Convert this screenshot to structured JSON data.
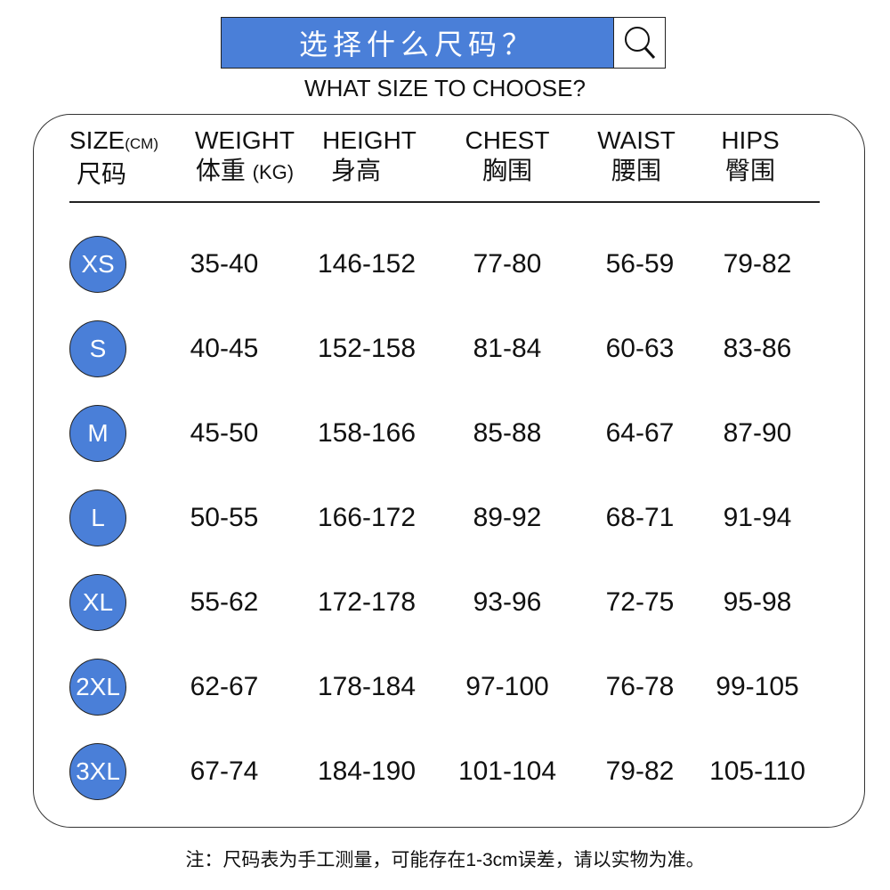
{
  "banner": {
    "title_cn": "选择什么尺码？",
    "subtitle": "WHAT SIZE TO CHOOSE?",
    "icon": "search-icon",
    "color": "#4a7fd8"
  },
  "headers": [
    {
      "en": "SIZE",
      "unit": "(CM)",
      "cn": "尺码"
    },
    {
      "en": "WEIGHT",
      "cn": "体重",
      "unit": "(KG)"
    },
    {
      "en": "HEIGHT",
      "cn": "身高"
    },
    {
      "en": "CHEST",
      "cn": "胸围"
    },
    {
      "en": "WAIST",
      "cn": "腰围"
    },
    {
      "en": "HIPS",
      "cn": "臀围"
    }
  ],
  "rows": [
    {
      "size": "XS",
      "weight": "35-40",
      "height": "146-152",
      "chest": "77-80",
      "waist": "56-59",
      "hips": "79-82"
    },
    {
      "size": "S",
      "weight": "40-45",
      "height": "152-158",
      "chest": "81-84",
      "waist": "60-63",
      "hips": "83-86"
    },
    {
      "size": "M",
      "weight": "45-50",
      "height": "158-166",
      "chest": "85-88",
      "waist": "64-67",
      "hips": "87-90"
    },
    {
      "size": "L",
      "weight": "50-55",
      "height": "166-172",
      "chest": "89-92",
      "waist": "68-71",
      "hips": "91-94"
    },
    {
      "size": "XL",
      "weight": "55-62",
      "height": "172-178",
      "chest": "93-96",
      "waist": "72-75",
      "hips": "95-98"
    },
    {
      "size": "2XL",
      "weight": "62-67",
      "height": "178-184",
      "chest": "97-100",
      "waist": "76-78",
      "hips": "99-105"
    },
    {
      "size": "3XL",
      "weight": "67-74",
      "height": "184-190",
      "chest": "101-104",
      "waist": "79-82",
      "hips": "105-110"
    }
  ],
  "note": "注：尺码表为手工测量，可能存在1-3cm误差，请以实物为准。"
}
